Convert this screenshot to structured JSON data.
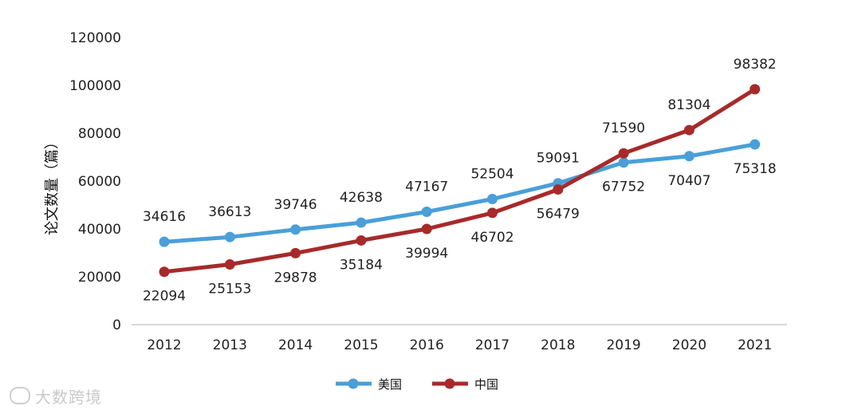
{
  "chart_data": {
    "type": "line",
    "ylabel": "论文数量（篇）",
    "categories": [
      "2012",
      "2013",
      "2014",
      "2015",
      "2016",
      "2017",
      "2018",
      "2019",
      "2020",
      "2021"
    ],
    "ylim": [
      0,
      120000
    ],
    "yticks": [
      0,
      20000,
      40000,
      60000,
      80000,
      100000,
      120000
    ],
    "grid": false,
    "legend_position": "bottom",
    "series": [
      {
        "name": "美国",
        "color": "#4a9fd8",
        "values": [
          34616,
          36613,
          39746,
          42638,
          47167,
          52504,
          59091,
          67752,
          70407,
          75318
        ],
        "label_position": [
          "above",
          "above",
          "above",
          "above",
          "above",
          "above",
          "above",
          "below",
          "below",
          "below"
        ]
      },
      {
        "name": "中国",
        "color": "#a72a2a",
        "values": [
          22094,
          25153,
          29878,
          35184,
          39994,
          46702,
          56479,
          71590,
          81304,
          98382
        ],
        "label_position": [
          "below",
          "below",
          "below",
          "below",
          "below",
          "below",
          "below",
          "above",
          "above",
          "above"
        ]
      }
    ]
  },
  "watermark": "大数跨境"
}
